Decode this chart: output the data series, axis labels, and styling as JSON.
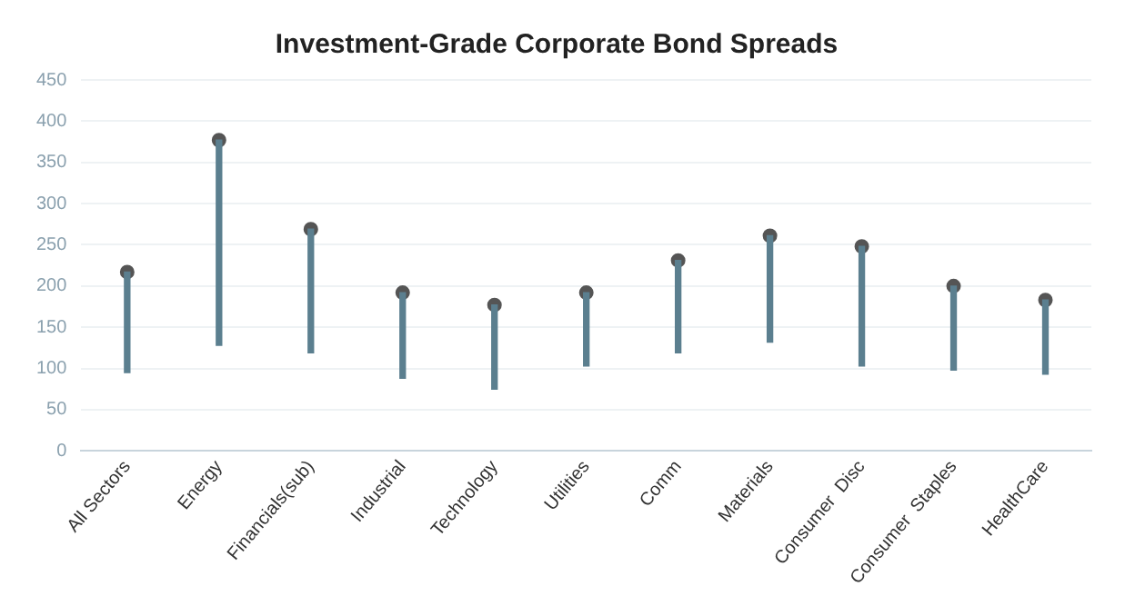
{
  "chart_data": {
    "type": "bar",
    "title": "Investment-Grade Corporate Bond Spreads",
    "categories": [
      "All Sectors",
      "Energy",
      "Financials(sub)",
      "Industrial",
      "Technology",
      "Utilities",
      "Comm",
      "Materials",
      "Consumer  Disc",
      "Consumer  Staples",
      "HealthCare"
    ],
    "series": [
      {
        "color": "#5b7f8f",
        "base": [
          95,
          128,
          119,
          88,
          75,
          103,
          119,
          132,
          103,
          98,
          93
        ],
        "values": [
          122,
          249,
          150,
          104,
          102,
          89,
          112,
          129,
          145,
          102,
          90
        ]
      },
      {
        "type": "scatter",
        "color": "#555555",
        "x": [
          "All Sectors",
          "Energy",
          "Financials(sub)",
          "Industrial",
          "Technology",
          "Utilities",
          "Comm",
          "Materials",
          "Consumer  Disc",
          "Consumer  Staples",
          "HealthCare"
        ],
        "values": [
          217,
          377,
          269,
          192,
          177,
          192,
          231,
          261,
          248,
          200,
          183
        ]
      }
    ],
    "ylim": [
      0,
      450
    ],
    "yticks": [
      0,
      50,
      100,
      150,
      200,
      250,
      300,
      350,
      400,
      450
    ],
    "grid": "y",
    "legend": false
  }
}
